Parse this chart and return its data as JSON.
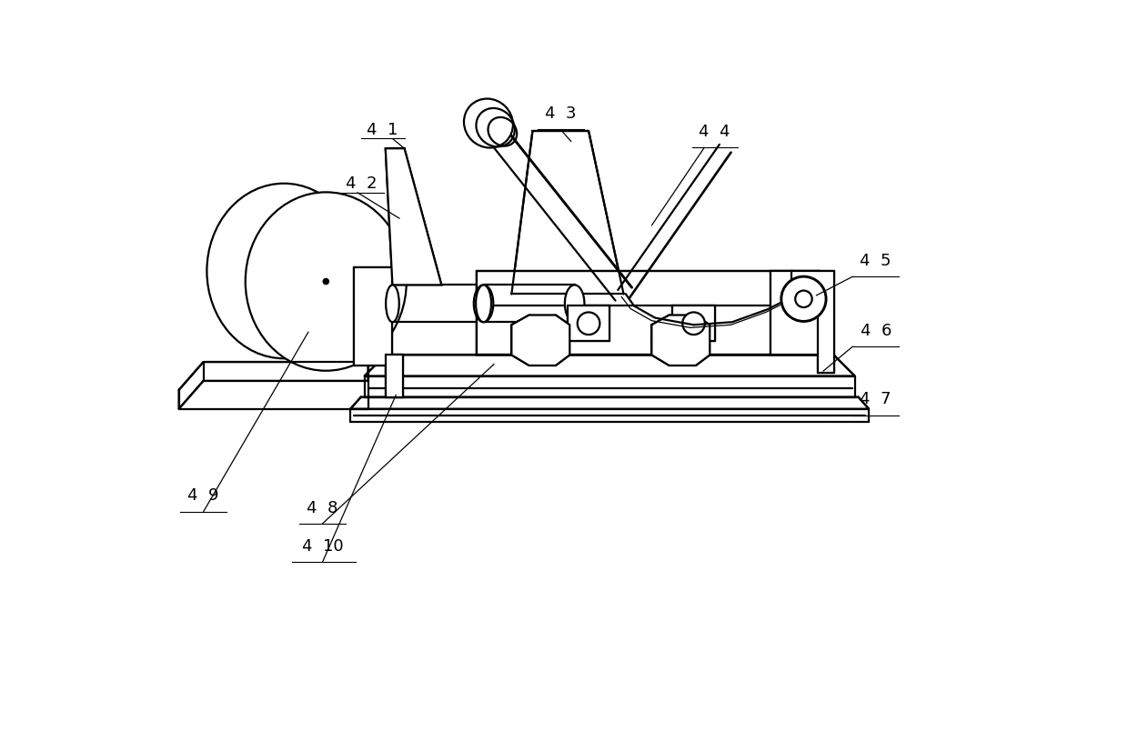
{
  "bg": "#ffffff",
  "lc": "#000000",
  "lw": 1.6,
  "tlw": 0.9,
  "fs": 13,
  "fw": 12.4,
  "fh": 8.15,
  "dpi": 100
}
